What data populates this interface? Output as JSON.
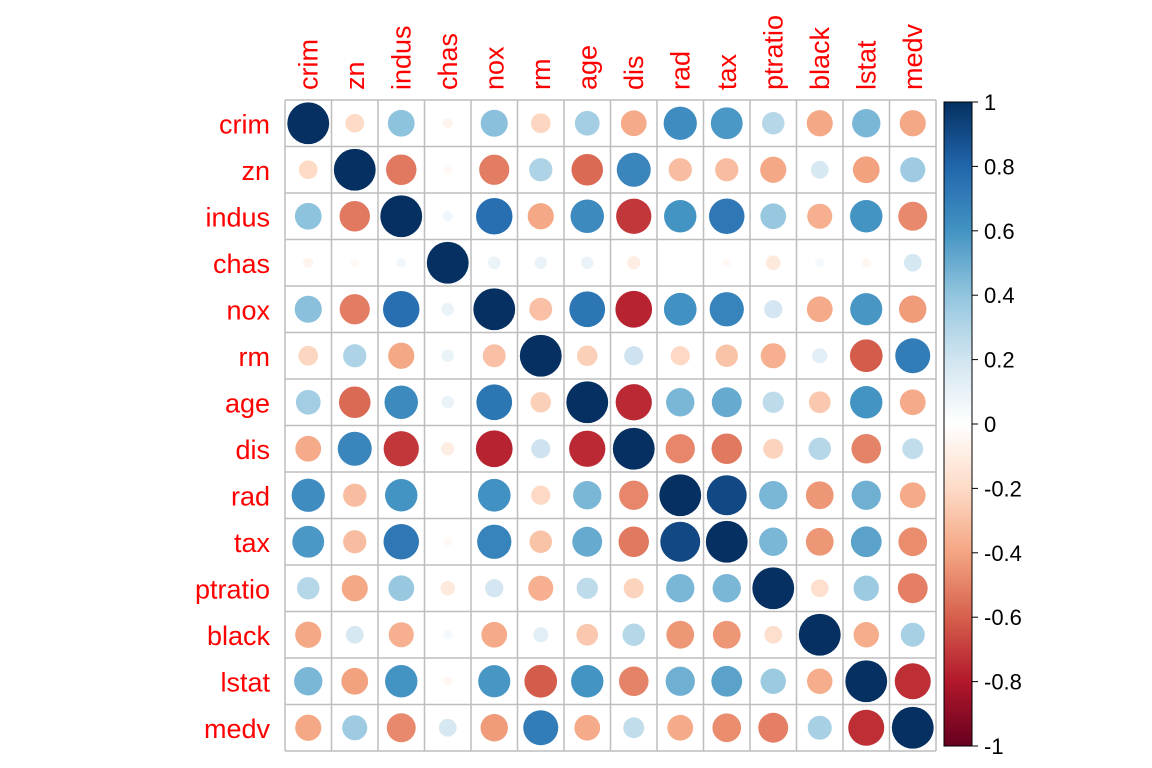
{
  "chart_data": {
    "type": "heatmap",
    "variables": [
      "crim",
      "zn",
      "indus",
      "chas",
      "nox",
      "rm",
      "age",
      "dis",
      "rad",
      "tax",
      "ptratio",
      "black",
      "lstat",
      "medv"
    ],
    "matrix": [
      [
        1.0,
        -0.2,
        0.41,
        -0.06,
        0.42,
        -0.22,
        0.35,
        -0.38,
        0.63,
        0.58,
        0.29,
        -0.39,
        0.46,
        -0.39
      ],
      [
        -0.2,
        1.0,
        -0.53,
        -0.04,
        -0.52,
        0.31,
        -0.57,
        0.66,
        -0.31,
        -0.31,
        -0.39,
        0.18,
        -0.41,
        0.36
      ],
      [
        0.41,
        -0.53,
        1.0,
        0.06,
        0.76,
        -0.39,
        0.64,
        -0.71,
        0.6,
        0.72,
        0.38,
        -0.36,
        0.6,
        -0.48
      ],
      [
        -0.06,
        -0.04,
        0.06,
        1.0,
        0.09,
        0.09,
        0.09,
        -0.1,
        -0.01,
        -0.04,
        -0.12,
        0.05,
        -0.05,
        0.18
      ],
      [
        0.42,
        -0.52,
        0.76,
        0.09,
        1.0,
        -0.3,
        0.73,
        -0.77,
        0.61,
        0.67,
        0.19,
        -0.38,
        0.59,
        -0.43
      ],
      [
        -0.22,
        0.31,
        -0.39,
        0.09,
        -0.3,
        1.0,
        -0.24,
        0.21,
        -0.21,
        -0.29,
        -0.36,
        0.13,
        -0.61,
        0.7
      ],
      [
        0.35,
        -0.57,
        0.64,
        0.09,
        0.73,
        -0.24,
        1.0,
        -0.75,
        0.46,
        0.51,
        0.26,
        -0.27,
        0.6,
        -0.38
      ],
      [
        -0.38,
        0.66,
        -0.71,
        -0.1,
        -0.77,
        0.21,
        -0.75,
        1.0,
        -0.49,
        -0.53,
        -0.23,
        0.29,
        -0.5,
        0.25
      ],
      [
        0.63,
        -0.31,
        0.6,
        -0.01,
        0.61,
        -0.21,
        0.46,
        -0.49,
        1.0,
        0.91,
        0.46,
        -0.44,
        0.49,
        -0.38
      ],
      [
        0.58,
        -0.31,
        0.72,
        -0.04,
        0.67,
        -0.29,
        0.51,
        -0.53,
        0.91,
        1.0,
        0.46,
        -0.44,
        0.54,
        -0.47
      ],
      [
        0.29,
        -0.39,
        0.38,
        -0.12,
        0.19,
        -0.36,
        0.26,
        -0.23,
        0.46,
        0.46,
        1.0,
        -0.18,
        0.37,
        -0.51
      ],
      [
        -0.39,
        0.18,
        -0.36,
        0.05,
        -0.38,
        0.13,
        -0.27,
        0.29,
        -0.44,
        -0.44,
        -0.18,
        1.0,
        -0.37,
        0.33
      ],
      [
        0.46,
        -0.41,
        0.6,
        -0.05,
        0.59,
        -0.61,
        0.6,
        -0.5,
        0.49,
        0.54,
        0.37,
        -0.37,
        1.0,
        -0.74
      ],
      [
        -0.39,
        0.36,
        -0.48,
        0.18,
        -0.43,
        0.7,
        -0.38,
        0.25,
        -0.38,
        -0.47,
        -0.51,
        0.33,
        -0.74,
        1.0
      ]
    ],
    "color_scale": {
      "range": [
        -1,
        1
      ],
      "ticks": [
        "1",
        "0.8",
        "0.6",
        "0.4",
        "0.2",
        "0",
        "-0.2",
        "-0.4",
        "-0.6",
        "-0.8",
        "-1"
      ],
      "palette": [
        "#67001F",
        "#B2182B",
        "#D6604D",
        "#F4A582",
        "#FDDBC7",
        "#FFFFFF",
        "#D1E5F0",
        "#92C5DE",
        "#4393C3",
        "#2166AC",
        "#053061"
      ]
    },
    "label_color": "#FF0000",
    "grid_color": "#BEBEBE",
    "legend_position": "right"
  }
}
